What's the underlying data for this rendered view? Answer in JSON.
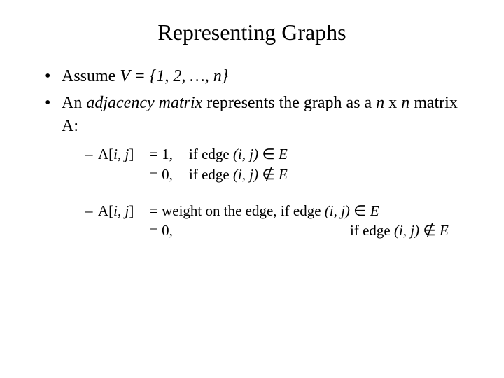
{
  "title": "Representing Graphs",
  "bullets": {
    "b1_pre": "Assume ",
    "b1_mid": "V = {1, 2, …, n}",
    "b2_pre": "An ",
    "b2_term": "adjacency matrix",
    "b2_post1": " represents the graph as a ",
    "b2_n1": "n",
    "b2_x": " x ",
    "b2_n2": "n",
    "b2_post2": " matrix A:"
  },
  "defs": {
    "dash": "–",
    "aij_pre": "A[",
    "aij_mid": "i, j",
    "aij_post": "]",
    "eq1": "= 1,",
    "eq0": "= 0,",
    "if_pre": "if edge ",
    "ij": "(i, j)",
    "inE": " ∈ ",
    "notinE": " ∉ ",
    "E": "E",
    "wline_pre": "= weight on the edge, if edge ",
    "wline_mid": "(i, j)",
    "wline_in": " ∈ ",
    "wline_E": "E"
  },
  "style": {
    "background": "#ffffff",
    "text_color": "#000000",
    "title_fontsize": 32,
    "body_fontsize": 24,
    "sub_fontsize": 21,
    "font_family": "Times New Roman"
  }
}
